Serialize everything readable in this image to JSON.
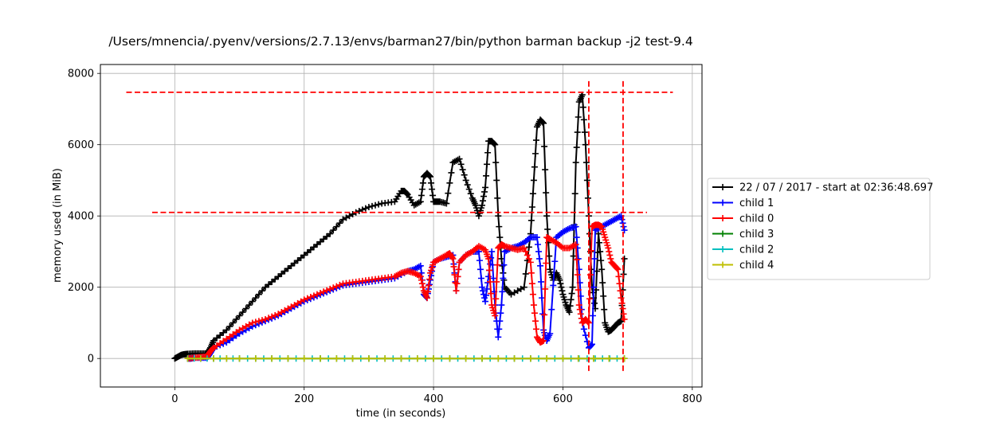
{
  "chart_data": {
    "type": "line",
    "title": "/Users/mnencia/.pyenv/versions/2.7.13/envs/barman27/bin/python barman backup -j2 test-9.4",
    "xlabel": "time (in seconds)",
    "ylabel": "memory used (in MiB)",
    "xlim": [
      -115,
      815
    ],
    "ylim": [
      -800,
      8250
    ],
    "xticks": [
      0,
      200,
      400,
      600,
      800
    ],
    "yticks": [
      0,
      2000,
      4000,
      6000,
      8000
    ],
    "grid": true,
    "legend_position": "center-right outside",
    "marker": "+",
    "series": [
      {
        "name": "22 / 07 / 2017 - start at 02:36:48.697",
        "color": "#000000",
        "x": [
          0,
          5,
          10,
          15,
          20,
          30,
          40,
          50,
          55,
          60,
          80,
          100,
          120,
          140,
          160,
          180,
          200,
          220,
          240,
          260,
          280,
          300,
          320,
          340,
          350,
          355,
          360,
          370,
          380,
          385,
          390,
          395,
          400,
          405,
          410,
          420,
          430,
          440,
          450,
          460,
          465,
          470,
          475,
          480,
          485,
          490,
          495,
          500,
          505,
          510,
          520,
          540,
          550,
          555,
          560,
          565,
          570,
          575,
          580,
          585,
          590,
          595,
          600,
          605,
          610,
          615,
          620,
          625,
          630,
          635,
          640,
          645,
          650,
          655,
          660,
          665,
          670,
          675,
          680,
          685,
          690,
          695
        ],
        "y": [
          0,
          50,
          100,
          120,
          130,
          140,
          140,
          140,
          300,
          500,
          800,
          1200,
          1600,
          2000,
          2300,
          2600,
          2900,
          3200,
          3500,
          3900,
          4100,
          4250,
          4350,
          4400,
          4700,
          4700,
          4600,
          4300,
          4400,
          5100,
          5200,
          5100,
          4400,
          4400,
          4400,
          4350,
          5500,
          5600,
          5000,
          4500,
          4300,
          4000,
          4300,
          4800,
          6100,
          6100,
          6000,
          4000,
          2800,
          2000,
          1800,
          2000,
          3500,
          5000,
          6500,
          6700,
          6600,
          4000,
          2500,
          2200,
          2400,
          2200,
          1800,
          1500,
          1300,
          2000,
          5500,
          7200,
          7400,
          6000,
          4000,
          2000,
          1400,
          3500,
          2500,
          1000,
          750,
          800,
          900,
          1000,
          1050,
          2800
        ]
      },
      {
        "name": "child 1",
        "color": "#0000ff",
        "x": [
          20,
          25,
          30,
          40,
          50,
          55,
          60,
          80,
          100,
          120,
          140,
          160,
          180,
          200,
          220,
          240,
          260,
          280,
          300,
          320,
          340,
          360,
          370,
          380,
          385,
          390,
          395,
          400,
          410,
          420,
          430,
          435,
          440,
          450,
          460,
          470,
          475,
          480,
          485,
          490,
          495,
          500,
          505,
          510,
          520,
          530,
          540,
          550,
          560,
          565,
          570,
          575,
          580,
          590,
          600,
          610,
          620,
          625,
          630,
          640,
          645,
          650,
          660,
          670,
          680,
          690,
          695
        ],
        "y": [
          0,
          0,
          20,
          20,
          20,
          150,
          300,
          450,
          700,
          900,
          1050,
          1200,
          1400,
          1600,
          1750,
          1900,
          2050,
          2100,
          2150,
          2200,
          2250,
          2450,
          2500,
          2600,
          1800,
          1700,
          2200,
          2700,
          2800,
          2850,
          2900,
          1900,
          2700,
          2900,
          3000,
          3000,
          2000,
          1600,
          2300,
          3000,
          1500,
          600,
          1500,
          3000,
          3100,
          3150,
          3250,
          3400,
          3400,
          2600,
          800,
          500,
          700,
          3400,
          3550,
          3650,
          3700,
          2500,
          1000,
          300,
          400,
          3600,
          3700,
          3800,
          3900,
          4000,
          3600
        ]
      },
      {
        "name": "child 0",
        "color": "#ff0000",
        "x": [
          20,
          30,
          40,
          50,
          55,
          60,
          80,
          100,
          120,
          140,
          160,
          180,
          200,
          220,
          240,
          260,
          280,
          300,
          320,
          340,
          350,
          360,
          370,
          380,
          385,
          390,
          395,
          400,
          410,
          420,
          425,
          430,
          435,
          440,
          450,
          460,
          470,
          480,
          485,
          490,
          495,
          500,
          505,
          510,
          520,
          530,
          540,
          550,
          555,
          560,
          565,
          570,
          575,
          580,
          590,
          600,
          610,
          620,
          625,
          630,
          635,
          640,
          645,
          650,
          655,
          660,
          665,
          670,
          675,
          680,
          685,
          690,
          695
        ],
        "y": [
          0,
          20,
          40,
          60,
          200,
          300,
          550,
          800,
          1000,
          1100,
          1250,
          1450,
          1650,
          1800,
          1950,
          2100,
          2150,
          2200,
          2250,
          2300,
          2400,
          2450,
          2400,
          2300,
          1900,
          1700,
          2400,
          2700,
          2800,
          2900,
          2950,
          2800,
          1900,
          2700,
          2900,
          3000,
          3150,
          3050,
          2800,
          1500,
          1200,
          3100,
          3200,
          3150,
          3100,
          3050,
          3100,
          2700,
          1500,
          600,
          450,
          500,
          3400,
          3350,
          3250,
          3100,
          3100,
          3200,
          1500,
          1000,
          1100,
          1000,
          3700,
          3750,
          3750,
          3700,
          3400,
          3100,
          2700,
          2600,
          2500,
          1700,
          1100
        ]
      },
      {
        "name": "child 3",
        "color": "#008000",
        "x": [
          20,
          100,
          200,
          300,
          400,
          500,
          600,
          695
        ],
        "y": [
          0,
          0,
          0,
          0,
          0,
          0,
          0,
          0
        ]
      },
      {
        "name": "child 2",
        "color": "#00bfbf",
        "x": [
          20,
          60,
          100,
          150,
          200,
          250,
          300,
          350,
          400,
          450,
          500,
          550,
          600,
          650,
          695
        ],
        "y": [
          0,
          0,
          0,
          0,
          0,
          0,
          0,
          0,
          0,
          0,
          0,
          0,
          0,
          0,
          0
        ]
      },
      {
        "name": "child 4",
        "color": "#bfbf00",
        "x": [
          20,
          100,
          200,
          300,
          400,
          500,
          600,
          695
        ],
        "y": [
          0,
          0,
          0,
          0,
          0,
          0,
          0,
          0
        ]
      }
    ],
    "reference_lines": [
      {
        "orientation": "horizontal",
        "y": 7470,
        "x_from": -75,
        "x_to": 770,
        "color": "#ff0000",
        "style": "dashed"
      },
      {
        "orientation": "horizontal",
        "y": 4100,
        "x_from": -35,
        "x_to": 730,
        "color": "#ff0000",
        "style": "dashed"
      },
      {
        "orientation": "vertical",
        "x": 640,
        "y_from": -350,
        "y_to": 7850,
        "color": "#ff0000",
        "style": "dashed"
      },
      {
        "orientation": "vertical",
        "x": 693,
        "y_from": -350,
        "y_to": 7850,
        "color": "#ff0000",
        "style": "dashed"
      }
    ]
  }
}
